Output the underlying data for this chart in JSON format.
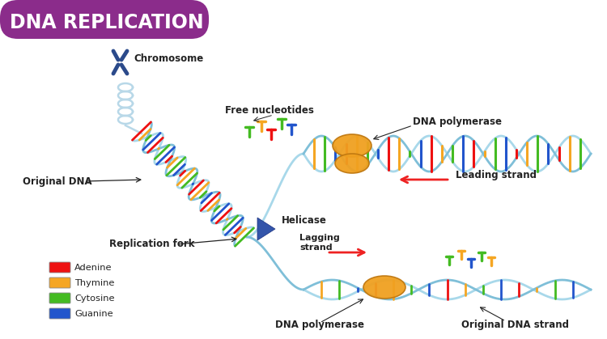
{
  "title": "DNA REPLICATION",
  "title_bg_color": "#8B2C8B",
  "title_text_color": "#FFFFFF",
  "bg_color": "#FFFFFF",
  "labels": {
    "chromosome": "Chromosome",
    "free_nucleotides": "Free nucleotides",
    "dna_polymerase_top": "DNA polymerase",
    "leading_strand": "Leading strand",
    "helicase": "Helicase",
    "lagging_strand": "Lagging\nstrand",
    "replication_fork": "Replication fork",
    "original_dna": "Original DNA",
    "dna_polymerase_bottom": "DNA polymerase",
    "original_dna_strand": "Original DNA strand"
  },
  "legend": [
    {
      "label": "Adenine",
      "color": "#EE1111"
    },
    {
      "label": "Thymine",
      "color": "#F5A623"
    },
    {
      "label": "Cytosine",
      "color": "#44BB22"
    },
    {
      "label": "Guanine",
      "color": "#2255CC"
    }
  ],
  "dna_colors": [
    "#EE1111",
    "#F5A623",
    "#44BB22",
    "#2255CC"
  ],
  "strand_color": "#A8D8EA",
  "strand_color2": "#7FBFD8",
  "helicase_color": "#3355AA",
  "polymerase_color": "#F0A020",
  "polymerase_edge": "#C07810",
  "nucleotide_colors": [
    "#EE1111",
    "#44BB22",
    "#F5A623",
    "#2255CC",
    "#EE1111",
    "#44BB22"
  ],
  "nucleotide_colors2": [
    "#44BB22",
    "#F5A623",
    "#2255CC",
    "#44BB22",
    "#F5A623"
  ],
  "arrow_color": "#EE2222",
  "label_color": "#222222",
  "label_font_size": 8.5,
  "title_font_size": 17
}
